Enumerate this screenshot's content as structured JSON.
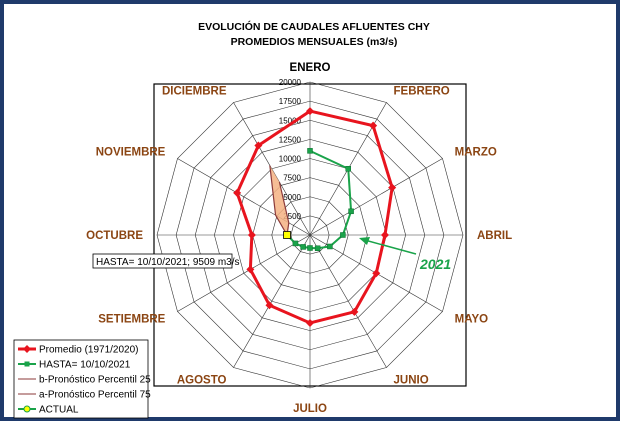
{
  "chart_data": {
    "type": "radar",
    "title": "EVOLUCIÓN DE CAUDALES AFLUENTES CHY",
    "subtitle": "PROMEDIOS MENSUALES (m3/s)",
    "categories": [
      "ENERO",
      "FEBRERO",
      "MARZO",
      "ABRIL",
      "MAYO",
      "JUNIO",
      "JULIO",
      "AGOSTO",
      "SETIEMBRE",
      "OCTUBRE",
      "NOVIEMBRE",
      "DICIEMBRE"
    ],
    "rlim": [
      0,
      20000
    ],
    "ticks": [
      "2500",
      "5000",
      "7500",
      "10000",
      "12500",
      "15000",
      "17500",
      "20000"
    ],
    "series": [
      {
        "name": "Promedio (1971/2020)",
        "color": "#e8141e",
        "values": [
          16200,
          16500,
          12400,
          9800,
          10000,
          11600,
          11500,
          10600,
          9000,
          7600,
          11000,
          13500
        ]
      },
      {
        "name": "HASTA= 10/10/2021",
        "color": "#1aa34a",
        "values": [
          11000,
          10000,
          6200,
          4300,
          3000,
          2000,
          1700,
          1800,
          2200,
          3000,
          null,
          null
        ]
      },
      {
        "name": "b-Pronóstico Percentil 25",
        "color": "#8b3a3a",
        "values": [
          null,
          null,
          null,
          null,
          null,
          null,
          null,
          null,
          null,
          3000,
          3200,
          8000
        ]
      },
      {
        "name": "a-Pronóstico Percentil 75",
        "color": "#8b3a3a",
        "values": [
          null,
          null,
          null,
          null,
          null,
          null,
          null,
          null,
          null,
          3000,
          5200,
          10500
        ]
      },
      {
        "name": "ACTUAL",
        "color": "#1aa34a"
      }
    ],
    "annotation": "HASTA=  10/10/2021; 9509 m3/s",
    "year_label": "2021",
    "legend_position": "bottom-left"
  }
}
